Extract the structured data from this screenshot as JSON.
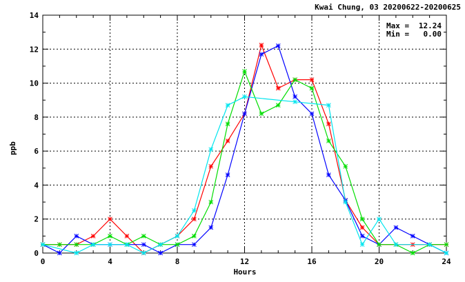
{
  "chart_data": {
    "type": "line",
    "title": "Kwai Chung, 03 20200622-20200625",
    "xlabel": "Hours",
    "ylabel": "ppb",
    "xlim": [
      0,
      24
    ],
    "ylim": [
      0,
      14
    ],
    "xticks": [
      0,
      4,
      8,
      12,
      16,
      20,
      24
    ],
    "yticks": [
      0,
      2,
      4,
      6,
      8,
      10,
      12,
      14
    ],
    "xtick_labels": [
      "0",
      "4",
      "8",
      "12",
      "16",
      "20",
      "24"
    ],
    "ytick_labels": [
      "0",
      "2",
      "4",
      "6",
      "8",
      "10",
      "12",
      "14"
    ],
    "grid": true,
    "stats": {
      "max_label": "Max =",
      "max_value": "12.24",
      "min_label": "Min =",
      "min_value": "0.00"
    },
    "x": [
      0,
      1,
      2,
      3,
      4,
      5,
      6,
      7,
      8,
      9,
      10,
      11,
      12,
      13,
      14,
      15,
      16,
      17,
      18,
      19,
      20,
      21,
      22,
      23,
      24
    ],
    "series": [
      {
        "color": "#ff0000",
        "values": [
          0.5,
          0.5,
          0.5,
          1.0,
          2.0,
          1.0,
          0.0,
          0.5,
          1.0,
          2.0,
          5.1,
          6.6,
          8.2,
          12.24,
          9.7,
          10.2,
          10.2,
          7.6,
          3.1,
          1.5,
          0.5,
          0.5,
          0.5,
          0.5,
          0.5
        ]
      },
      {
        "color": "#0000ff",
        "values": [
          0.5,
          0.0,
          1.0,
          0.5,
          0.5,
          0.5,
          0.5,
          0.0,
          0.5,
          0.5,
          1.5,
          4.6,
          8.2,
          11.7,
          12.2,
          9.2,
          8.2,
          4.6,
          3.1,
          1.0,
          0.5,
          1.5,
          1.0,
          0.5,
          0.0
        ]
      },
      {
        "color": "#00dd00",
        "values": [
          0.5,
          0.5,
          0.5,
          0.5,
          1.0,
          0.5,
          1.0,
          0.5,
          0.5,
          1.0,
          3.0,
          7.6,
          10.7,
          8.2,
          8.7,
          10.2,
          9.7,
          6.6,
          5.1,
          2.0,
          0.5,
          0.5,
          0.0,
          0.5,
          0.5
        ]
      },
      {
        "color": "#00e5ee",
        "values": [
          0.5,
          null,
          0.0,
          0.5,
          0.5,
          0.5,
          0.0,
          0.5,
          1.0,
          2.5,
          6.1,
          8.7,
          9.2,
          null,
          null,
          8.9,
          null,
          8.7,
          3.0,
          0.5,
          2.0,
          0.5,
          null,
          0.5,
          0.0
        ]
      }
    ]
  }
}
